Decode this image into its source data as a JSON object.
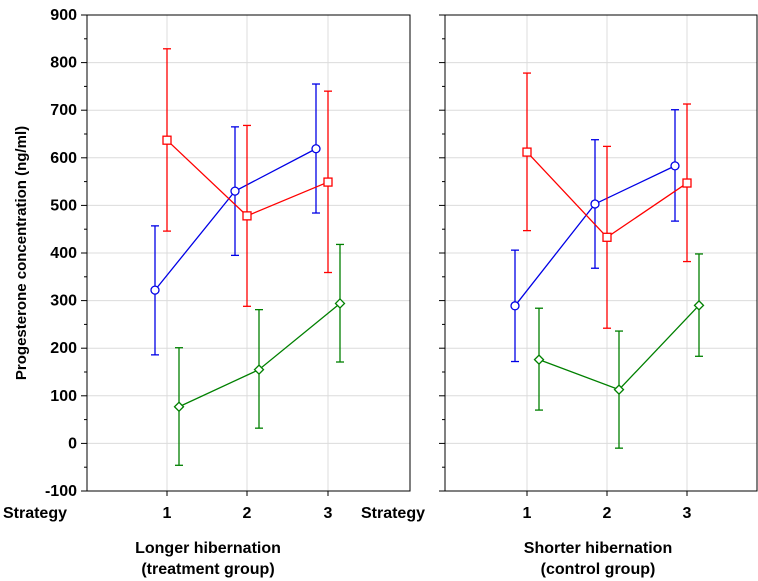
{
  "chart_data": {
    "type": "line",
    "ylabel": "Progesterone concentration (ng/ml)",
    "ylim": [
      -100,
      900
    ],
    "yticks": [
      -100,
      0,
      100,
      200,
      300,
      400,
      500,
      600,
      700,
      800,
      900
    ],
    "x_axis_label": "Strategy",
    "categories": [
      "1",
      "2",
      "3"
    ],
    "grid": true,
    "colors": {
      "blue": "#0000e6",
      "red": "#ff0000",
      "green": "#008000"
    },
    "panels": [
      {
        "caption_line1": "Longer hibernation",
        "caption_line2": "(treatment group)",
        "series": [
          {
            "color": "#0000e6",
            "marker": "circle",
            "values": [
              322,
              530,
              619
            ],
            "lower": [
              186,
              395,
              484
            ],
            "upper": [
              457,
              665,
              755
            ]
          },
          {
            "color": "#ff0000",
            "marker": "square",
            "values": [
              637,
              478,
              549
            ],
            "lower": [
              446,
              288,
              359
            ],
            "upper": [
              829,
              668,
              740
            ]
          },
          {
            "color": "#008000",
            "marker": "diamond",
            "values": [
              77,
              155,
              294
            ],
            "lower": [
              -46,
              32,
              171
            ],
            "upper": [
              201,
              281,
              418
            ]
          }
        ]
      },
      {
        "caption_line1": "Shorter hibernation",
        "caption_line2": "(control group)",
        "series": [
          {
            "color": "#0000e6",
            "marker": "circle",
            "values": [
              289,
              503,
              583
            ],
            "lower": [
              172,
              368,
              467
            ],
            "upper": [
              406,
              638,
              701
            ]
          },
          {
            "color": "#ff0000",
            "marker": "square",
            "values": [
              612,
              433,
              547
            ],
            "lower": [
              447,
              242,
              382
            ],
            "upper": [
              778,
              624,
              713
            ]
          },
          {
            "color": "#008000",
            "marker": "diamond",
            "values": [
              176,
              113,
              290
            ],
            "lower": [
              70,
              -10,
              183
            ],
            "upper": [
              284,
              236,
              398
            ]
          }
        ]
      }
    ]
  }
}
